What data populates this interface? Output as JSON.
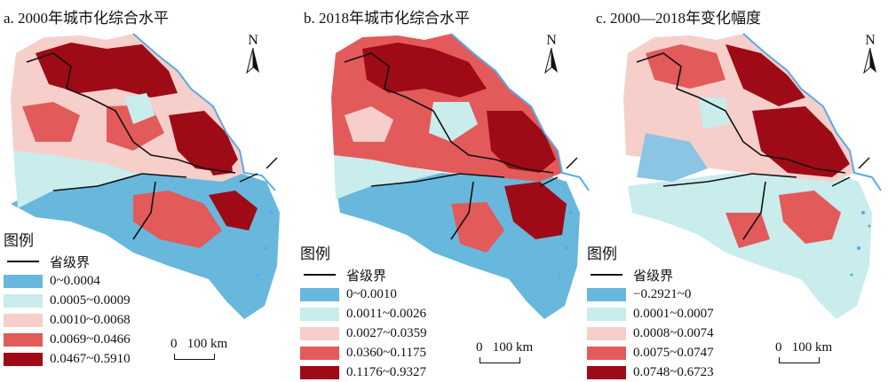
{
  "panels": [
    {
      "title": "a. 2000年城市化综合水平",
      "legend_title": "图例",
      "boundary_label": "省级界",
      "classes": [
        {
          "label": "0~0.0004",
          "color": "#67b8dc"
        },
        {
          "label": "0.0005~0.0009",
          "color": "#c9ecec"
        },
        {
          "label": "0.0010~0.0068",
          "color": "#f6cfcb"
        },
        {
          "label": "0.0069~0.0466",
          "color": "#e35a5a"
        },
        {
          "label": "0.0467~0.5910",
          "color": "#9e0b16"
        }
      ],
      "scale": {
        "zero": "0",
        "label": "100 km"
      },
      "north": "N"
    },
    {
      "title": "b. 2018年城市化综合水平",
      "legend_title": "图例",
      "boundary_label": "省级界",
      "classes": [
        {
          "label": "0~0.0010",
          "color": "#67b8dc"
        },
        {
          "label": "0.0011~0.0026",
          "color": "#c9ecec"
        },
        {
          "label": "0.0027~0.0359",
          "color": "#f6cfcb"
        },
        {
          "label": "0.0360~0.1175",
          "color": "#e35a5a"
        },
        {
          "label": "0.1176~0.9327",
          "color": "#9e0b16"
        }
      ],
      "scale": {
        "zero": "0",
        "label": "100 km"
      },
      "north": "N"
    },
    {
      "title": "c. 2000—2018年变化幅度",
      "legend_title": "图例",
      "boundary_label": "省级界",
      "classes": [
        {
          "label": "−0.2921~0",
          "color": "#67b8dc"
        },
        {
          "label": "0.0001~0.0007",
          "color": "#c9ecec"
        },
        {
          "label": "0.0008~0.0074",
          "color": "#f6cfcb"
        },
        {
          "label": "0.0075~0.0747",
          "color": "#e35a5a"
        },
        {
          "label": "0.0748~0.6723",
          "color": "#9e0b16"
        }
      ],
      "scale": {
        "zero": "0",
        "label": "100 km"
      },
      "north": "N"
    }
  ],
  "colors": {
    "coast": "#5aa9e6",
    "boundary": "#111111"
  }
}
